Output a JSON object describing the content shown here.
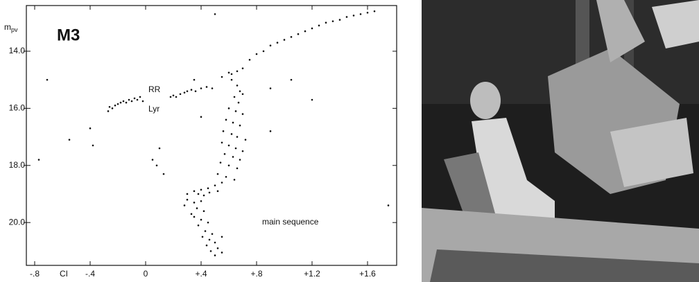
{
  "chart_data": {
    "type": "scatter",
    "title": "M3",
    "y_label": "m",
    "y_label_sub": "pv",
    "x_label": "CI",
    "annotations": [
      "RR",
      "Lyr",
      "main sequence"
    ],
    "xlim": [
      -0.86,
      1.81
    ],
    "ylim": [
      21.5,
      12.4
    ],
    "grid": false,
    "xticks": [
      {
        "value": -0.8,
        "label": "-.8"
      },
      {
        "value": -0.4,
        "label": "-.4"
      },
      0,
      {
        "value": 0.4,
        "label": "+.4"
      },
      {
        "value": 0.8,
        "label": "+.8"
      },
      {
        "value": 1.2,
        "label": "+1.2"
      },
      {
        "value": 1.6,
        "label": "+1.6"
      }
    ],
    "yticks": [
      {
        "value": 14,
        "label": "14.0"
      },
      {
        "value": 16,
        "label": "16.0"
      },
      {
        "value": 18,
        "label": "18.0"
      },
      {
        "value": 20,
        "label": "20.0"
      }
    ],
    "series": [
      {
        "color": "#111111",
        "x": [
          -0.27,
          -0.26,
          -0.24,
          -0.22,
          -0.2,
          -0.18,
          -0.16,
          -0.14,
          -0.12,
          -0.1,
          -0.08,
          -0.06,
          -0.04,
          -0.02,
          0.18,
          0.2,
          0.22,
          0.25,
          0.28,
          0.3,
          0.33,
          0.36,
          0.4,
          0.44,
          0.48,
          0.55,
          0.6,
          0.62,
          0.66,
          0.7,
          0.75,
          0.8,
          0.85,
          0.9,
          0.95,
          1.0,
          1.05,
          1.1,
          1.15,
          1.2,
          1.25,
          1.3,
          1.35,
          1.4,
          1.45,
          1.5,
          1.55,
          1.6,
          0.62,
          0.66,
          0.68,
          0.7,
          0.64,
          0.67,
          0.6,
          0.65,
          0.7,
          0.58,
          0.63,
          0.68,
          0.56,
          0.62,
          0.66,
          0.72,
          0.55,
          0.6,
          0.65,
          0.7,
          0.57,
          0.63,
          0.68,
          0.54,
          0.6,
          0.66,
          0.52,
          0.58,
          0.64,
          0.35,
          0.4,
          0.45,
          0.5,
          0.55,
          0.38,
          0.42,
          0.46,
          0.52,
          0.3,
          0.35,
          0.4,
          0.37,
          0.42,
          0.33,
          0.4,
          0.45,
          0.38,
          0.43,
          0.48,
          0.41,
          0.46,
          0.5,
          0.44,
          0.52,
          0.47,
          0.55,
          0.5,
          0.3,
          0.28,
          0.35,
          0.55,
          -0.71,
          -0.4,
          -0.55,
          -0.38,
          0.05,
          0.08,
          0.1,
          0.13,
          1.05,
          1.2,
          0.9,
          1.75,
          0.5,
          0.35,
          -0.77,
          0.4,
          0.9,
          1.65
        ],
        "values": [
          16.1,
          15.95,
          16.0,
          15.9,
          15.85,
          15.8,
          15.75,
          15.8,
          15.7,
          15.75,
          15.65,
          15.7,
          15.6,
          15.75,
          15.6,
          15.55,
          15.6,
          15.5,
          15.45,
          15.4,
          15.35,
          15.4,
          15.3,
          15.25,
          15.3,
          14.9,
          14.75,
          14.8,
          14.7,
          14.6,
          14.3,
          14.1,
          14.0,
          13.8,
          13.7,
          13.6,
          13.5,
          13.4,
          13.3,
          13.2,
          13.1,
          13.0,
          12.95,
          12.9,
          12.8,
          12.75,
          12.7,
          12.65,
          15.0,
          15.2,
          15.4,
          15.5,
          15.6,
          15.8,
          16.0,
          16.1,
          16.2,
          16.4,
          16.5,
          16.6,
          16.8,
          16.9,
          17.0,
          17.1,
          17.2,
          17.3,
          17.4,
          17.5,
          17.6,
          17.7,
          17.8,
          17.9,
          18.0,
          18.1,
          18.3,
          18.4,
          18.5,
          18.9,
          18.85,
          18.8,
          18.7,
          18.6,
          19.0,
          19.05,
          18.95,
          18.9,
          19.2,
          19.3,
          19.25,
          19.5,
          19.6,
          19.7,
          19.9,
          20.0,
          20.1,
          20.3,
          20.4,
          20.5,
          20.6,
          20.7,
          20.8,
          20.9,
          21.0,
          21.05,
          21.15,
          19.0,
          19.4,
          19.8,
          20.5,
          15.0,
          16.7,
          17.1,
          17.3,
          17.8,
          18.0,
          17.4,
          18.3,
          15.0,
          15.7,
          16.8,
          19.4,
          12.7,
          15.0,
          17.8,
          16.3,
          15.3,
          12.6
        ]
      }
    ]
  }
}
